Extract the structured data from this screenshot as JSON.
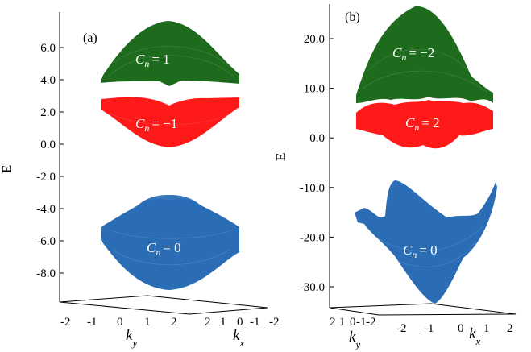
{
  "chart_data": [
    {
      "type": "surface3d",
      "panel_label": "(a)",
      "zlabel": "E",
      "xlabel": "k_x",
      "ylabel": "k_y",
      "zlim": [
        -9.0,
        7.5
      ],
      "z_ticks": [
        "6.0",
        "4.0",
        "2.0",
        "0.0",
        "-2.0",
        "-4.0",
        "-6.0",
        "-8.0"
      ],
      "z_tick_values": [
        6,
        4,
        2,
        0,
        -2,
        -4,
        -6,
        -8
      ],
      "ky_ticks": [
        "-2",
        "-1",
        "0",
        "1",
        "2"
      ],
      "kx_ticks": [
        "2",
        "1",
        "0",
        "-1",
        "-2"
      ],
      "bands": [
        {
          "label_prefix": "C",
          "label_sub": "n",
          "label_value": "= 1",
          "color": "#1e6b1e",
          "e_min": 3.5,
          "e_max": 7.3
        },
        {
          "label_prefix": "C",
          "label_sub": "n",
          "label_value": "= −1",
          "color": "#ff1a1a",
          "e_min": -0.2,
          "e_max": 2.9
        },
        {
          "label_prefix": "C",
          "label_sub": "n",
          "label_value": "= 0",
          "color": "#2a6db5",
          "e_min": -8.9,
          "e_max": -3.7
        }
      ]
    },
    {
      "type": "surface3d",
      "panel_label": "(b)",
      "zlabel": "E",
      "xlabel": "k_x",
      "ylabel": "k_y",
      "zlim": [
        -33,
        28
      ],
      "z_ticks": [
        "20.0",
        "10.0",
        "0.0",
        "-10.0",
        "-20.0",
        "-30.0"
      ],
      "z_tick_values": [
        20,
        10,
        0,
        -10,
        -20,
        -30
      ],
      "ky_ticks": [
        "2",
        "1",
        "0",
        "-1",
        "-2"
      ],
      "kx_ticks": [
        "-2",
        "-1",
        "0",
        "1",
        "2"
      ],
      "bands": [
        {
          "label_prefix": "C",
          "label_sub": "n",
          "label_value": "= −2",
          "color": "#1e6b1e",
          "e_min": 7.5,
          "e_max": 27.0
        },
        {
          "label_prefix": "C",
          "label_sub": "n",
          "label_value": "= 2",
          "color": "#ff1a1a",
          "e_min": 2.0,
          "e_max": 7.5
        },
        {
          "label_prefix": "C",
          "label_sub": "n",
          "label_value": "= 0",
          "color": "#2a6db5",
          "e_min": -33.0,
          "e_max": -8.5
        }
      ]
    }
  ]
}
